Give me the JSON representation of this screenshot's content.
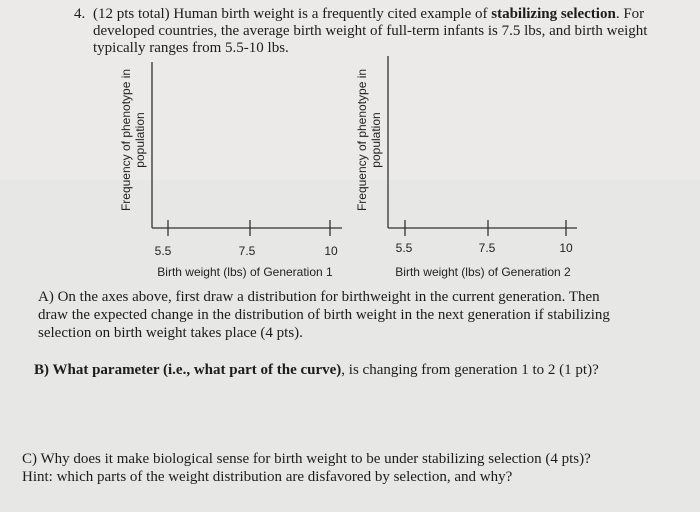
{
  "question_number": "4.",
  "intro_lines": [
    [
      "(12 pts total) Human birth weight is a frequently cited example of ",
      "stabilizing selection",
      ". For"
    ],
    [
      "developed countries, the average birth weight of full-term infants is 7.5 lbs, and birth weight"
    ],
    [
      "typically ranges from 5.5-10 lbs."
    ]
  ],
  "figures": [
    {
      "y_label": [
        "Frequency of phenotype in",
        "population"
      ],
      "x_ticks": [
        "5.5",
        "7.5",
        "10"
      ],
      "x_label": "Birth weight (lbs) of Generation 1"
    },
    {
      "y_label": [
        "Frequency of phenotype in",
        "population"
      ],
      "x_ticks": [
        "5.5",
        "7.5",
        "10"
      ],
      "x_label": "Birth weight (lbs) of Generation 2"
    }
  ],
  "part_a": [
    "A) On the axes above, first draw a distribution for birthweight in the current generation. Then",
    "draw the expected change in the distribution of birth weight in the next generation if stabilizing",
    "selection on birth weight takes place (4 pts)."
  ],
  "part_b": [
    "B) What parameter (i.e., what part of the curve)",
    ", is changing from generation 1 to 2 (1 pt)?"
  ],
  "part_c": [
    "C) Why does it make biological sense for birth weight to be under stabilizing selection (4 pts)?",
    "Hint: which parts of the weight distribution are disfavored by selection, and why?"
  ]
}
